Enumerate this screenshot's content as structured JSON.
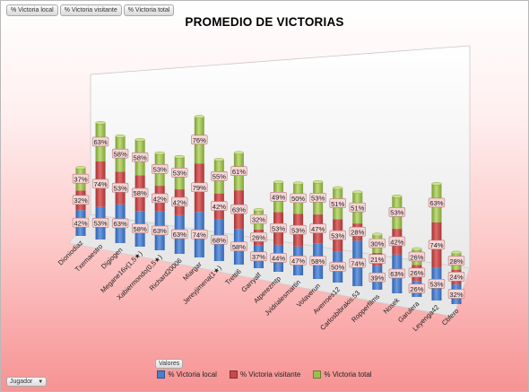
{
  "filters": {
    "buttons": [
      "% Victoria local",
      "% Victoria visitante",
      "% Victoria total"
    ]
  },
  "legend_title": "Valores",
  "row_field": {
    "label": "Jugador"
  },
  "colors": {
    "local": "#4a7fcf",
    "visitante": "#c94a4a",
    "total": "#9bc04e"
  },
  "chart_data": {
    "type": "bar",
    "stacked": true,
    "title": "PROMEDIO DE VICTORIAS",
    "categories": [
      "Dioniodiaz",
      "Txemaestro",
      "Digiogen",
      "Megane16v(1,5★)",
      "Xabiermondo(0,5★)",
      "Richard20006",
      "Miargar",
      "Jereyjimena(1★)",
      "Tretti6",
      "Garryalf",
      "Atperezmtp",
      "Jvidrialesmartin",
      "Volaverun",
      "Averroes12",
      "Carlosbibrakis.53",
      "Ropperfilms",
      "Nosek",
      "Garulera",
      "Leyenga42",
      "Cbfero"
    ],
    "series": [
      {
        "name": "% Victoria local",
        "values": [
          42,
          53,
          63,
          58,
          63,
          63,
          74,
          68,
          58,
          37,
          44,
          47,
          58,
          50,
          74,
          39,
          63,
          26,
          53,
          32
        ]
      },
      {
        "name": "% Victoria visitante",
        "values": [
          32,
          74,
          53,
          58,
          42,
          42,
          79,
          42,
          63,
          26,
          53,
          53,
          47,
          53,
          28,
          21,
          42,
          26,
          74,
          24
        ]
      },
      {
        "name": "% Victoria total",
        "values": [
          37,
          63,
          58,
          58,
          53,
          53,
          76,
          55,
          61,
          32,
          49,
          50,
          53,
          51,
          51,
          30,
          53,
          26,
          63,
          28
        ]
      }
    ]
  }
}
